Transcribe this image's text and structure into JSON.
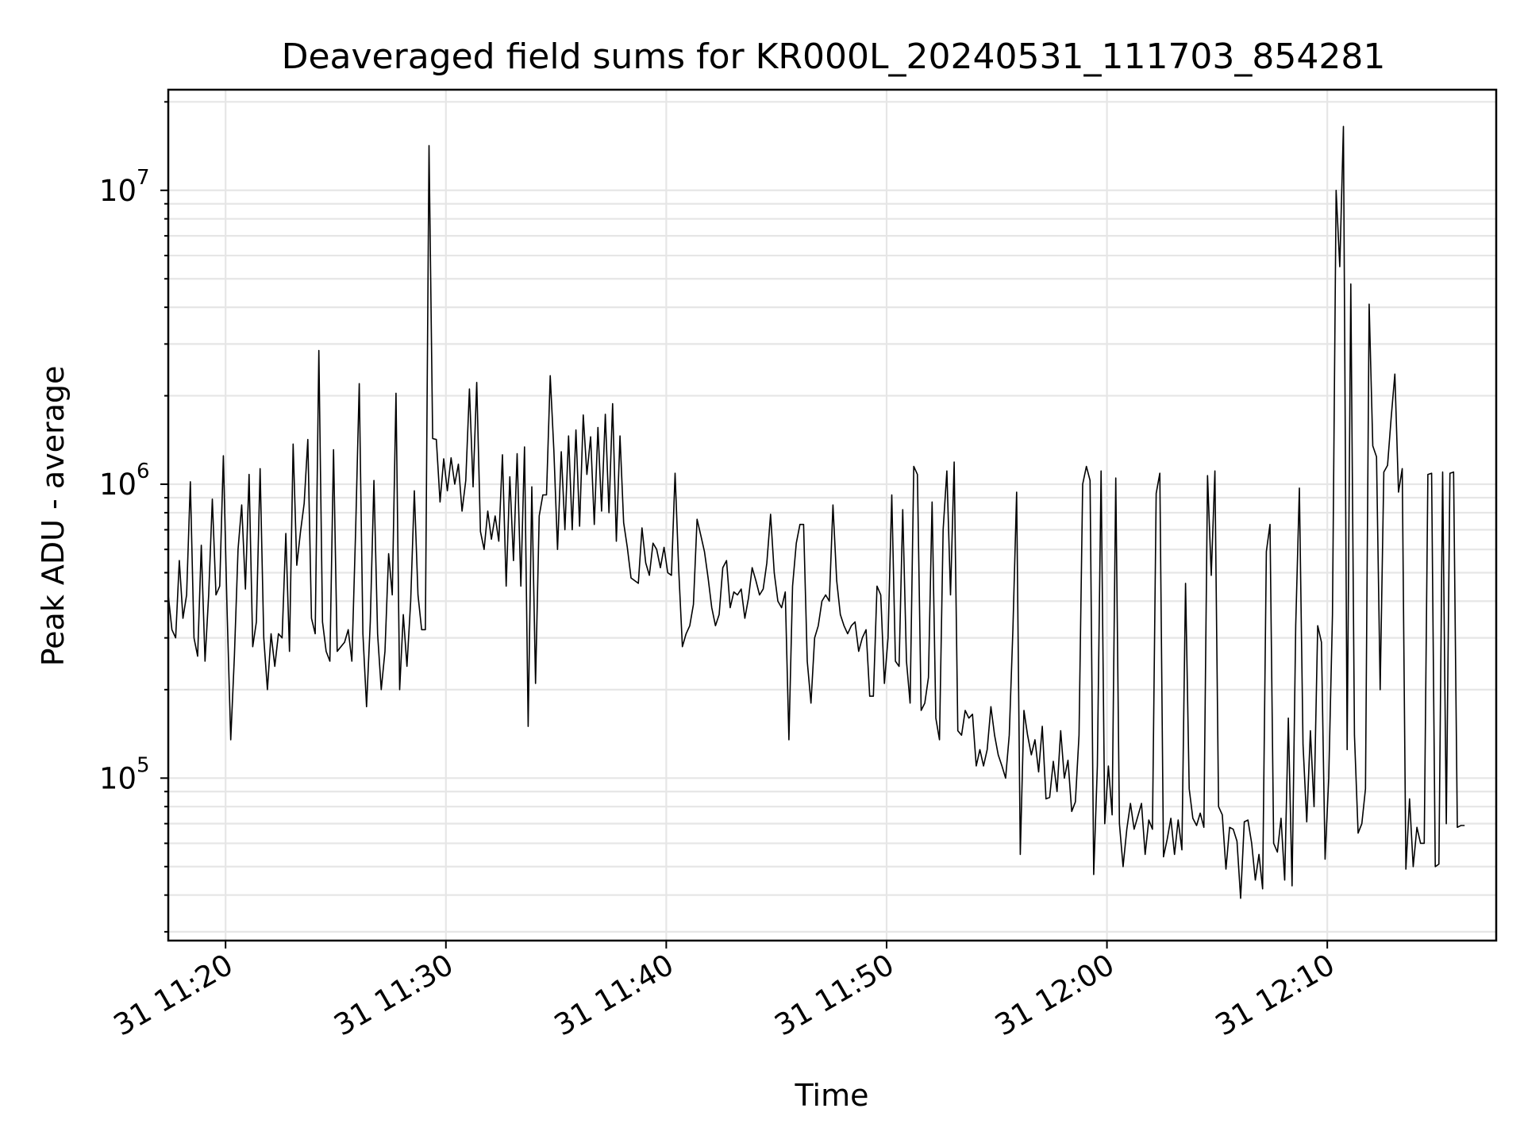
{
  "chart_data": {
    "type": "line",
    "title": "Deaveraged field sums for KR000L_20240531_111703_854281",
    "xlabel": "Time",
    "ylabel": "Peak ADU - average",
    "yscale": "log",
    "ylim": [
      28000,
      22000000
    ],
    "xlim": [
      "2024-05-31T11:17:24",
      "2024-05-31T12:17:40"
    ],
    "grid": true,
    "line_color": "#000000",
    "x_ticks": [
      {
        "value": "2024-05-31T11:20:00",
        "label": "31 11:20"
      },
      {
        "value": "2024-05-31T11:30:00",
        "label": "31 11:30"
      },
      {
        "value": "2024-05-31T11:40:00",
        "label": "31 11:40"
      },
      {
        "value": "2024-05-31T11:50:00",
        "label": "31 11:50"
      },
      {
        "value": "2024-05-31T12:00:00",
        "label": "31 12:00"
      },
      {
        "value": "2024-05-31T12:10:00",
        "label": "31 12:10"
      }
    ],
    "y_ticks": [
      {
        "value": 100000,
        "base": "10",
        "exp": "5"
      },
      {
        "value": 1000000,
        "base": "10",
        "exp": "6"
      },
      {
        "value": 10000000,
        "base": "10",
        "exp": "7"
      }
    ],
    "series": [
      {
        "start": "2024-05-31T11:17:24",
        "step_seconds": 10,
        "values": [
          420000,
          320000,
          300000,
          550000,
          350000,
          420000,
          1020000,
          300000,
          260000,
          620000,
          250000,
          420000,
          890000,
          420000,
          450000,
          1250000,
          380000,
          135000,
          260000,
          600000,
          850000,
          440000,
          1080000,
          280000,
          340000,
          1130000,
          300000,
          200000,
          310000,
          240000,
          310000,
          300000,
          680000,
          270000,
          1370000,
          530000,
          690000,
          860000,
          1420000,
          350000,
          310000,
          2850000,
          340000,
          270000,
          250000,
          1310000,
          270000,
          280000,
          290000,
          320000,
          250000,
          690000,
          2200000,
          310000,
          175000,
          340000,
          1030000,
          310000,
          200000,
          270000,
          580000,
          420000,
          2040000,
          200000,
          360000,
          240000,
          400000,
          950000,
          420000,
          320000,
          320000,
          14200000,
          1430000,
          1420000,
          870000,
          1220000,
          950000,
          1230000,
          1000000,
          1170000,
          810000,
          1030000,
          2110000,
          980000,
          2220000,
          690000,
          600000,
          810000,
          650000,
          780000,
          640000,
          1260000,
          450000,
          1060000,
          550000,
          1270000,
          450000,
          1340000,
          150000,
          980000,
          210000,
          780000,
          920000,
          920000,
          2340000,
          1300000,
          600000,
          1290000,
          700000,
          1460000,
          700000,
          1530000,
          720000,
          1720000,
          1080000,
          1450000,
          730000,
          1560000,
          810000,
          1730000,
          800000,
          1880000,
          640000,
          1460000,
          740000,
          610000,
          480000,
          470000,
          460000,
          710000,
          540000,
          490000,
          630000,
          600000,
          520000,
          610000,
          500000,
          490000,
          1090000,
          510000,
          280000,
          310000,
          330000,
          390000,
          760000,
          670000,
          590000,
          480000,
          380000,
          330000,
          360000,
          520000,
          550000,
          380000,
          430000,
          420000,
          440000,
          350000,
          410000,
          520000,
          470000,
          420000,
          440000,
          540000,
          790000,
          500000,
          400000,
          380000,
          430000,
          135000,
          450000,
          630000,
          730000,
          730000,
          250000,
          180000,
          300000,
          330000,
          400000,
          420000,
          400000,
          850000,
          470000,
          360000,
          330000,
          310000,
          330000,
          340000,
          270000,
          300000,
          320000,
          190000,
          190000,
          450000,
          420000,
          210000,
          300000,
          920000,
          250000,
          240000,
          820000,
          250000,
          180000,
          1150000,
          1080000,
          170000,
          180000,
          220000,
          870000,
          160000,
          135000,
          700000,
          1110000,
          420000,
          1190000,
          145000,
          140000,
          170000,
          160000,
          165000,
          110000,
          125000,
          110000,
          125000,
          175000,
          140000,
          120000,
          110000,
          100000,
          140000,
          320000,
          940000,
          55000,
          170000,
          140000,
          120000,
          135000,
          105000,
          150000,
          85000,
          86000,
          114000,
          90000,
          145000,
          100000,
          115000,
          77000,
          83000,
          140000,
          1000000,
          1150000,
          1030000,
          47000,
          110000,
          1110000,
          70000,
          110000,
          75000,
          1050000,
          70000,
          50000,
          67000,
          82000,
          67000,
          74000,
          82000,
          55000,
          72000,
          67000,
          930000,
          1090000,
          54000,
          62000,
          73000,
          55000,
          72000,
          57000,
          460000,
          92000,
          73000,
          69000,
          76000,
          68000,
          1070000,
          490000,
          1110000,
          80000,
          75000,
          49000,
          68000,
          67000,
          61000,
          39000,
          71000,
          72000,
          60000,
          45000,
          55000,
          42000,
          590000,
          730000,
          60000,
          56000,
          73000,
          45000,
          160000,
          43000,
          330000,
          970000,
          130000,
          71000,
          145000,
          80000,
          330000,
          290000,
          53000,
          100000,
          360000,
          10000000,
          5500000,
          16500000,
          125000,
          4800000,
          140000,
          65000,
          70000,
          92000,
          4100000,
          1350000,
          1240000,
          200000,
          1100000,
          1160000,
          1690000,
          2370000,
          940000,
          1130000,
          49000,
          85000,
          50000,
          68000,
          60000,
          60000,
          1080000,
          1090000,
          50000,
          51000,
          1100000,
          70000,
          1090000,
          1100000,
          68000,
          69000,
          69000
        ]
      }
    ]
  }
}
